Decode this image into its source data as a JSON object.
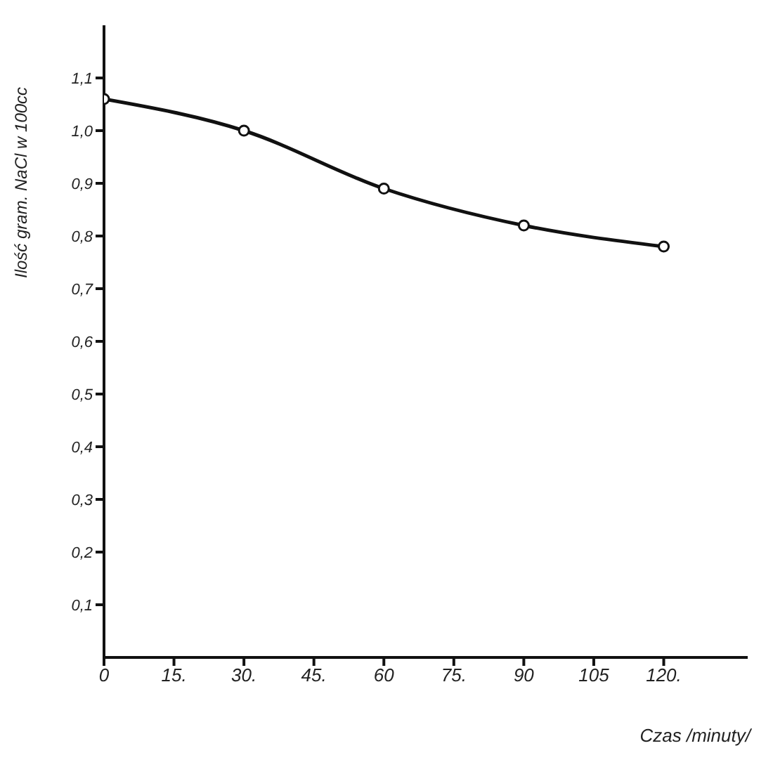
{
  "chart_data": {
    "type": "line",
    "xlabel": "Czas /minuty/",
    "ylabel": "Ilość gram. NaCl w 100cc",
    "x": [
      0,
      30,
      60,
      90,
      120
    ],
    "series": [
      {
        "color": "#111111",
        "values": [
          1.06,
          1.0,
          0.89,
          0.82,
          0.78
        ]
      }
    ],
    "xlim": [
      0,
      138
    ],
    "xticks": [
      0,
      {
        "value": 15,
        "label": "15."
      },
      {
        "value": 30,
        "label": "30."
      },
      {
        "value": 45,
        "label": "45."
      },
      60,
      {
        "value": 75,
        "label": "75."
      },
      90,
      105,
      {
        "value": 120,
        "label": "120."
      }
    ],
    "ylim": [
      0,
      1.2
    ],
    "yticks": [
      {
        "value": 0.1,
        "label": "0,1"
      },
      {
        "value": 0.2,
        "label": "0,2"
      },
      {
        "value": 0.3,
        "label": "0,3"
      },
      {
        "value": 0.4,
        "label": "0,4"
      },
      {
        "value": 0.5,
        "label": "0,5"
      },
      {
        "value": 0.6,
        "label": "0,6"
      },
      {
        "value": 0.7,
        "label": "0,7"
      },
      {
        "value": 0.8,
        "label": "0,8"
      },
      {
        "value": 0.9,
        "label": "0,9"
      },
      {
        "value": 1.0,
        "label": "1,0"
      },
      {
        "value": 1.1,
        "label": "1,1"
      }
    ],
    "grid": false,
    "legend": false,
    "marker": "circle",
    "line_style": "solid"
  }
}
